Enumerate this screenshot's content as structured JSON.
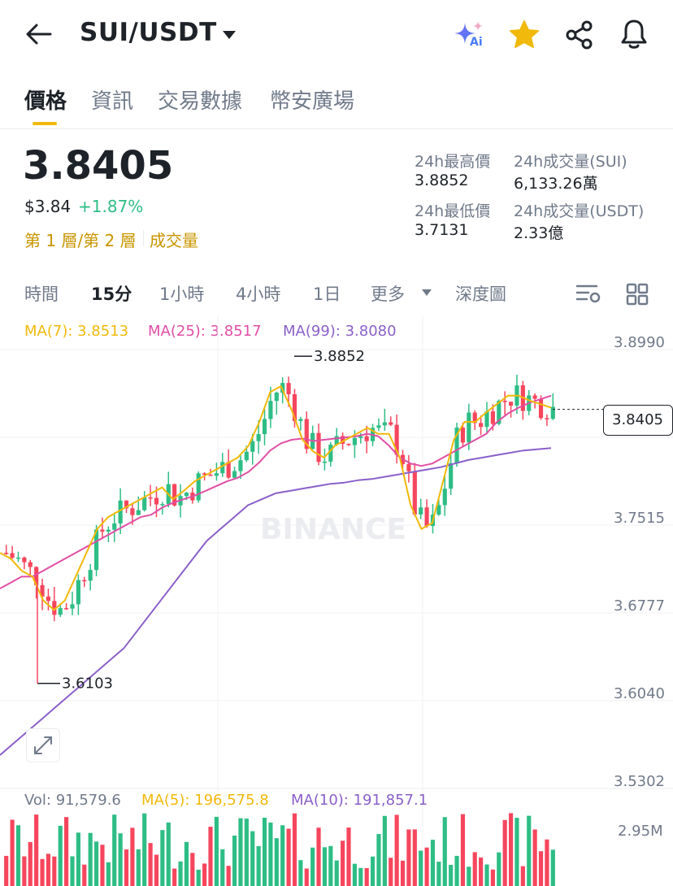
{
  "header": {
    "title": "SUI/USDT",
    "ai_badge": "Ai",
    "icons": [
      "back-arrow-icon",
      "dropdown-caret-icon",
      "ai-sparkle-icon",
      "star-icon",
      "share-icon",
      "bell-icon"
    ]
  },
  "tabs": [
    "價格",
    "資訊",
    "交易數據",
    "幣安廣場"
  ],
  "ticker": {
    "price": "3.8405",
    "usd_price": "$3.84",
    "change": "+1.87%",
    "layer_links": "第 1 層/第 2 層",
    "volume_link": "成交量",
    "stats": {
      "high_label": "24h最高價",
      "high_value": "3.8852",
      "vol_sui_label": "24h成交量(SUI)",
      "vol_sui_value": "6,133.26萬",
      "low_label": "24h最低價",
      "low_value": "3.7131",
      "vol_usdt_label": "24h成交量(USDT)",
      "vol_usdt_value": "2.33億"
    }
  },
  "intervals": {
    "items": [
      "時間",
      "15分",
      "1小時",
      "4小時",
      "1日",
      "更多",
      "深度圖"
    ],
    "active": "15分"
  },
  "ma_legend": {
    "ma7": "MA(7): 3.8513",
    "ma25": "MA(25): 3.8517",
    "ma99": "MA(99): 3.8080"
  },
  "colors": {
    "up": "#2ebd85",
    "down": "#f6465d",
    "ma7": "#f0b90b",
    "ma25": "#e14ea4",
    "ma99": "#8a60c9",
    "accent": "#f0b90b"
  },
  "chart_data": {
    "type": "candlestick",
    "y_ticks": [
      "3.8990",
      "3.7515",
      "3.6777",
      "3.6040",
      "3.5302"
    ],
    "current_price_label": "3.8405",
    "high_annotation": "3.8852",
    "low_annotation": "3.6103",
    "watermark": "BINANCE",
    "ylim": [
      3.5302,
      3.899
    ],
    "ma7": [
      3.72,
      3.715,
      3.705,
      3.7,
      3.68,
      3.672,
      3.68,
      3.7,
      3.72,
      3.74,
      3.75,
      3.755,
      3.76,
      3.765,
      3.77,
      3.775,
      3.765,
      3.772,
      3.78,
      3.785,
      3.79,
      3.795,
      3.8,
      3.81,
      3.83,
      3.855,
      3.86,
      3.84,
      3.815,
      3.805,
      3.8,
      3.81,
      3.815,
      3.82,
      3.825,
      3.82,
      3.82,
      3.8,
      3.76,
      3.74,
      3.745,
      3.78,
      3.815,
      3.83,
      3.83,
      3.838,
      3.845,
      3.852,
      3.852,
      3.848,
      3.845,
      3.842
    ],
    "ma25": [
      3.69,
      3.695,
      3.7,
      3.7,
      3.705,
      3.71,
      3.715,
      3.72,
      3.725,
      3.73,
      3.735,
      3.74,
      3.745,
      3.75,
      3.752,
      3.758,
      3.762,
      3.765,
      3.768,
      3.772,
      3.776,
      3.78,
      3.783,
      3.788,
      3.796,
      3.806,
      3.812,
      3.815,
      3.816,
      3.814,
      3.815,
      3.816,
      3.817,
      3.818,
      3.82,
      3.818,
      3.81,
      3.8,
      3.795,
      3.793,
      3.795,
      3.8,
      3.805,
      3.81,
      3.815,
      3.82,
      3.83,
      3.837,
      3.842,
      3.846,
      3.849,
      3.852
    ],
    "ma99": [
      3.55,
      3.56,
      3.57,
      3.58,
      3.59,
      3.6,
      3.61,
      3.62,
      3.63,
      3.64,
      3.655,
      3.67,
      3.685,
      3.7,
      3.715,
      3.73,
      3.74,
      3.75,
      3.76,
      3.765,
      3.77,
      3.772,
      3.774,
      3.776,
      3.778,
      3.779,
      3.781,
      3.782,
      3.784,
      3.786,
      3.788,
      3.79,
      3.792,
      3.795,
      3.798,
      3.8,
      3.802,
      3.804,
      3.806,
      3.807,
      3.808
    ],
    "volume": {
      "vol_label": "Vol: 91,579.6",
      "ma5_label": "MA(5): 196,575.8",
      "ma10_label": "MA(10): 191,857.1",
      "axis_label": "2.95M"
    }
  }
}
